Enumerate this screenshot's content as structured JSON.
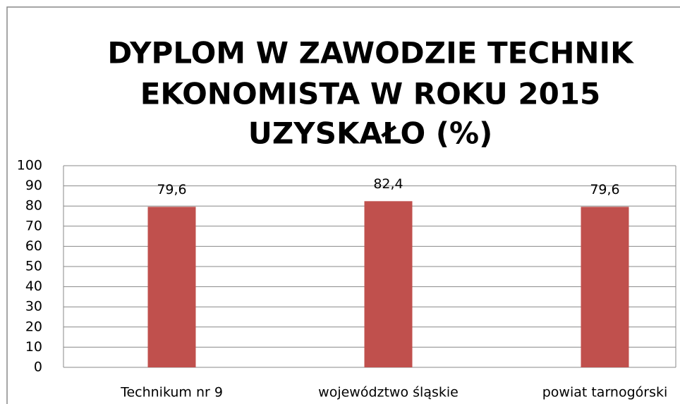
{
  "chart_data": {
    "type": "bar",
    "title": [
      "DYPLOM W ZAWODZIE TECHNIK",
      "EKONOMISTA W ROKU 2015",
      "UZYSKAŁO (%)"
    ],
    "categories": [
      "Technikum nr 9",
      "województwo śląskie",
      "powiat tarnogórski"
    ],
    "values": [
      79.6,
      82.4,
      79.6
    ],
    "value_labels": [
      "79,6",
      "82,4",
      "79,6"
    ],
    "color": "#c0504d",
    "ylim": [
      0,
      100
    ],
    "yticks": [
      0,
      10,
      20,
      30,
      40,
      50,
      60,
      70,
      80,
      90,
      100
    ],
    "grid": true
  }
}
